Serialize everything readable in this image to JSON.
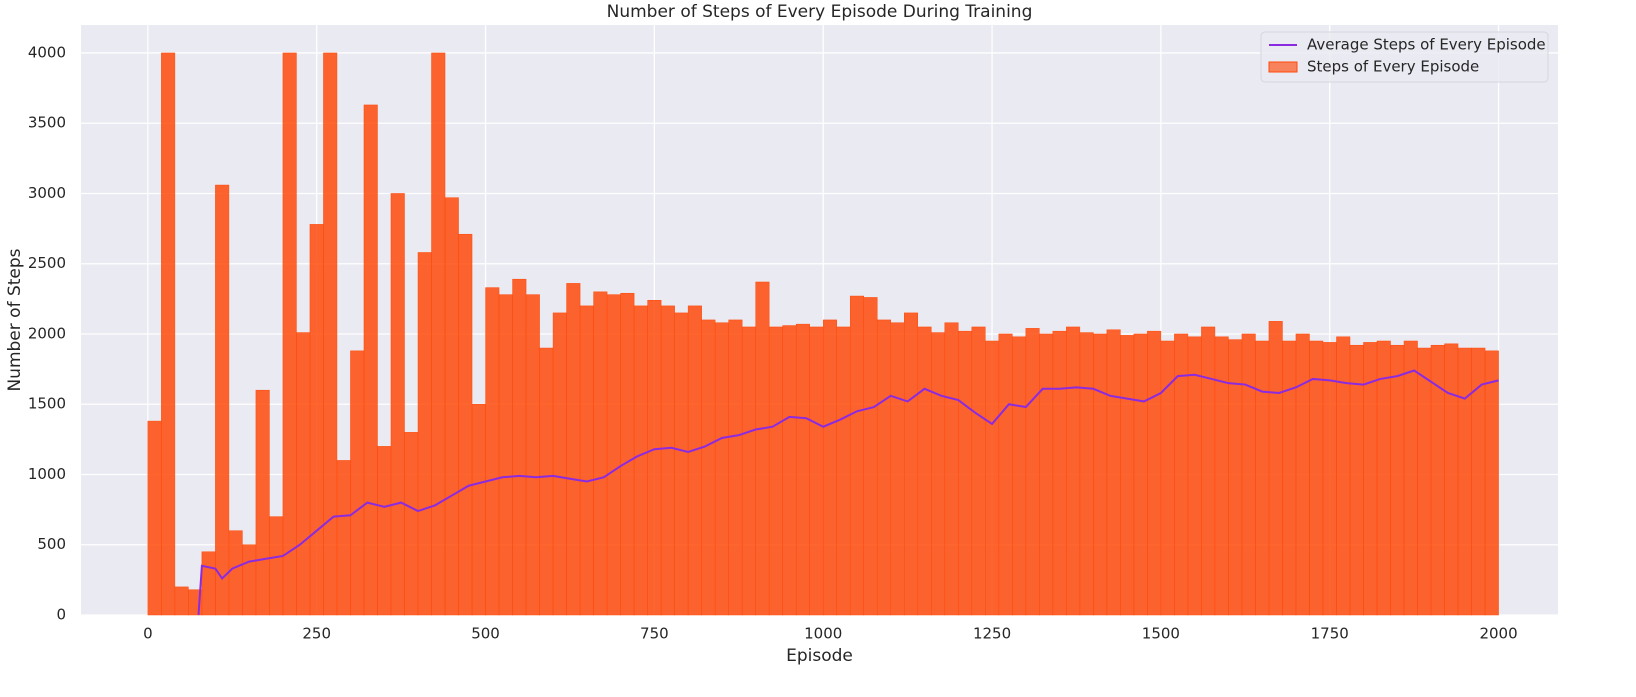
{
  "chart_data": {
    "type": "bar",
    "title": "Number of Steps of Every Episode During Training",
    "xlabel": "Episode",
    "ylabel": "Number of Steps",
    "xlim": [
      -99,
      2088
    ],
    "ylim": [
      0,
      4199
    ],
    "xticks": [
      0,
      250,
      500,
      750,
      1000,
      1250,
      1500,
      1750,
      2000
    ],
    "yticks": [
      0,
      500,
      1000,
      1500,
      2000,
      2500,
      3000,
      3500,
      4000
    ],
    "grid": true,
    "legend": "upper right",
    "series": [
      {
        "name": "Average Steps of Every Episode",
        "type": "line",
        "color": "#8a2be2",
        "x": [
          75,
          80,
          100,
          110,
          125,
          150,
          175,
          200,
          225,
          250,
          275,
          300,
          325,
          350,
          375,
          400,
          425,
          450,
          475,
          500,
          525,
          550,
          575,
          600,
          625,
          650,
          675,
          700,
          725,
          750,
          775,
          800,
          825,
          850,
          875,
          900,
          925,
          950,
          975,
          1000,
          1025,
          1050,
          1075,
          1100,
          1125,
          1150,
          1175,
          1200,
          1225,
          1250,
          1275,
          1300,
          1325,
          1350,
          1375,
          1400,
          1425,
          1450,
          1475,
          1500,
          1525,
          1550,
          1575,
          1600,
          1625,
          1650,
          1675,
          1700,
          1725,
          1750,
          1775,
          1800,
          1825,
          1850,
          1875,
          1900,
          1925,
          1950,
          1975,
          2000
        ],
        "values": [
          0,
          350,
          330,
          260,
          330,
          380,
          400,
          420,
          500,
          600,
          700,
          710,
          800,
          770,
          800,
          740,
          780,
          850,
          920,
          950,
          980,
          990,
          980,
          990,
          970,
          950,
          980,
          1060,
          1130,
          1180,
          1190,
          1160,
          1200,
          1260,
          1280,
          1320,
          1340,
          1410,
          1400,
          1340,
          1390,
          1450,
          1480,
          1560,
          1520,
          1610,
          1560,
          1530,
          1440,
          1360,
          1500,
          1480,
          1610,
          1610,
          1620,
          1610,
          1560,
          1540,
          1520,
          1580,
          1700,
          1710,
          1680,
          1650,
          1640,
          1590,
          1580,
          1620,
          1680,
          1670,
          1650,
          1640,
          1680,
          1700,
          1740,
          1660,
          1580,
          1540,
          1640,
          1670
        ]
      },
      {
        "name": "Steps of Every Episode",
        "type": "bar",
        "color": "#ff4a0a",
        "x": [
          0,
          20,
          40,
          60,
          80,
          100,
          120,
          140,
          160,
          180,
          200,
          220,
          240,
          260,
          280,
          300,
          320,
          340,
          360,
          380,
          400,
          420,
          440,
          460,
          480,
          500,
          520,
          540,
          560,
          580,
          600,
          620,
          640,
          660,
          680,
          700,
          720,
          740,
          760,
          780,
          800,
          820,
          840,
          860,
          880,
          900,
          920,
          940,
          960,
          980,
          1000,
          1020,
          1040,
          1060,
          1080,
          1100,
          1120,
          1140,
          1160,
          1180,
          1200,
          1220,
          1240,
          1260,
          1280,
          1300,
          1320,
          1340,
          1360,
          1380,
          1400,
          1420,
          1440,
          1460,
          1480,
          1500,
          1520,
          1540,
          1560,
          1580,
          1600,
          1620,
          1640,
          1660,
          1680,
          1700,
          1720,
          1740,
          1760,
          1780,
          1800,
          1820,
          1840,
          1860,
          1880,
          1900,
          1920,
          1940,
          1960,
          1980
        ],
        "values": [
          1380,
          4000,
          200,
          180,
          450,
          3060,
          600,
          500,
          1600,
          700,
          4000,
          2010,
          2780,
          4000,
          1100,
          1880,
          3630,
          1200,
          3000,
          1300,
          2580,
          4000,
          2970,
          2710,
          1500,
          2330,
          2280,
          2390,
          2280,
          1900,
          2150,
          2360,
          2200,
          2300,
          2280,
          2290,
          2200,
          2240,
          2200,
          2150,
          2200,
          2100,
          2080,
          2100,
          2050,
          2370,
          2050,
          2060,
          2070,
          2050,
          2100,
          2050,
          2270,
          2260,
          2100,
          2080,
          2150,
          2050,
          2010,
          2080,
          2020,
          2050,
          1950,
          2000,
          1980,
          2040,
          2000,
          2020,
          2050,
          2010,
          2000,
          2030,
          1990,
          2000,
          2020,
          1950,
          2000,
          1980,
          2050,
          1980,
          1960,
          2000,
          1950,
          2090,
          1950,
          2000,
          1950,
          1940,
          1980,
          1920,
          1940,
          1950,
          1920,
          1950,
          1900,
          1920,
          1930,
          1900,
          1900,
          1880
        ]
      }
    ]
  }
}
